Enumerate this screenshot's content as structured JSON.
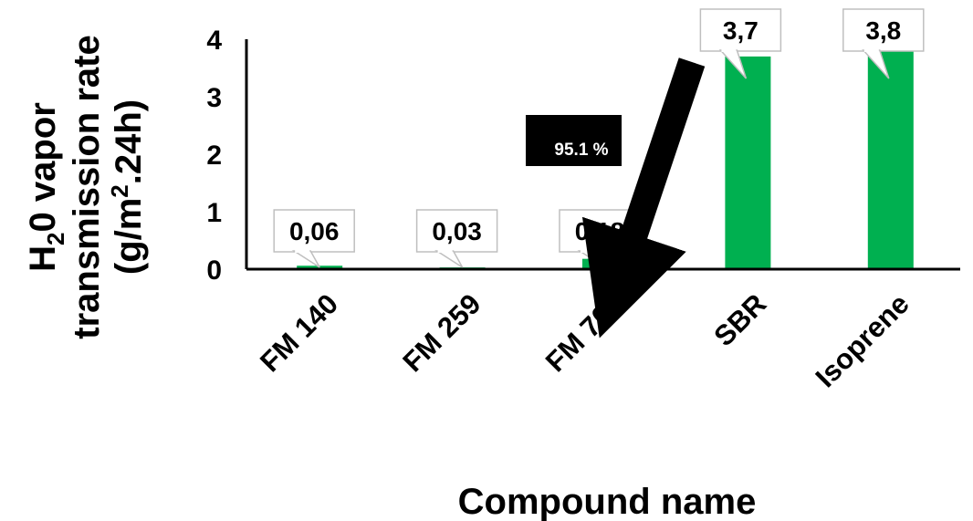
{
  "chart_data": {
    "type": "bar",
    "categories": [
      "FM 140",
      "FM 259",
      "FM 701",
      "SBR",
      "Isoprene"
    ],
    "values": [
      0.06,
      0.03,
      0.18,
      3.7,
      3.8
    ],
    "data_labels": [
      "0,06",
      "0,03",
      "0,18",
      "3,7",
      "3,8"
    ],
    "yticks": [
      0,
      1,
      2,
      3,
      4
    ],
    "ylim": [
      0,
      4
    ],
    "xlabel": "Compound name",
    "ylabel_lines": [
      "H",
      "2",
      "0 vapor",
      "transmission rate",
      "(g/m",
      "2",
      ".24h)"
    ],
    "bar_color": "#00B050",
    "grid": false,
    "annotation": {
      "text": "95.1 %",
      "color": "#000000"
    }
  }
}
